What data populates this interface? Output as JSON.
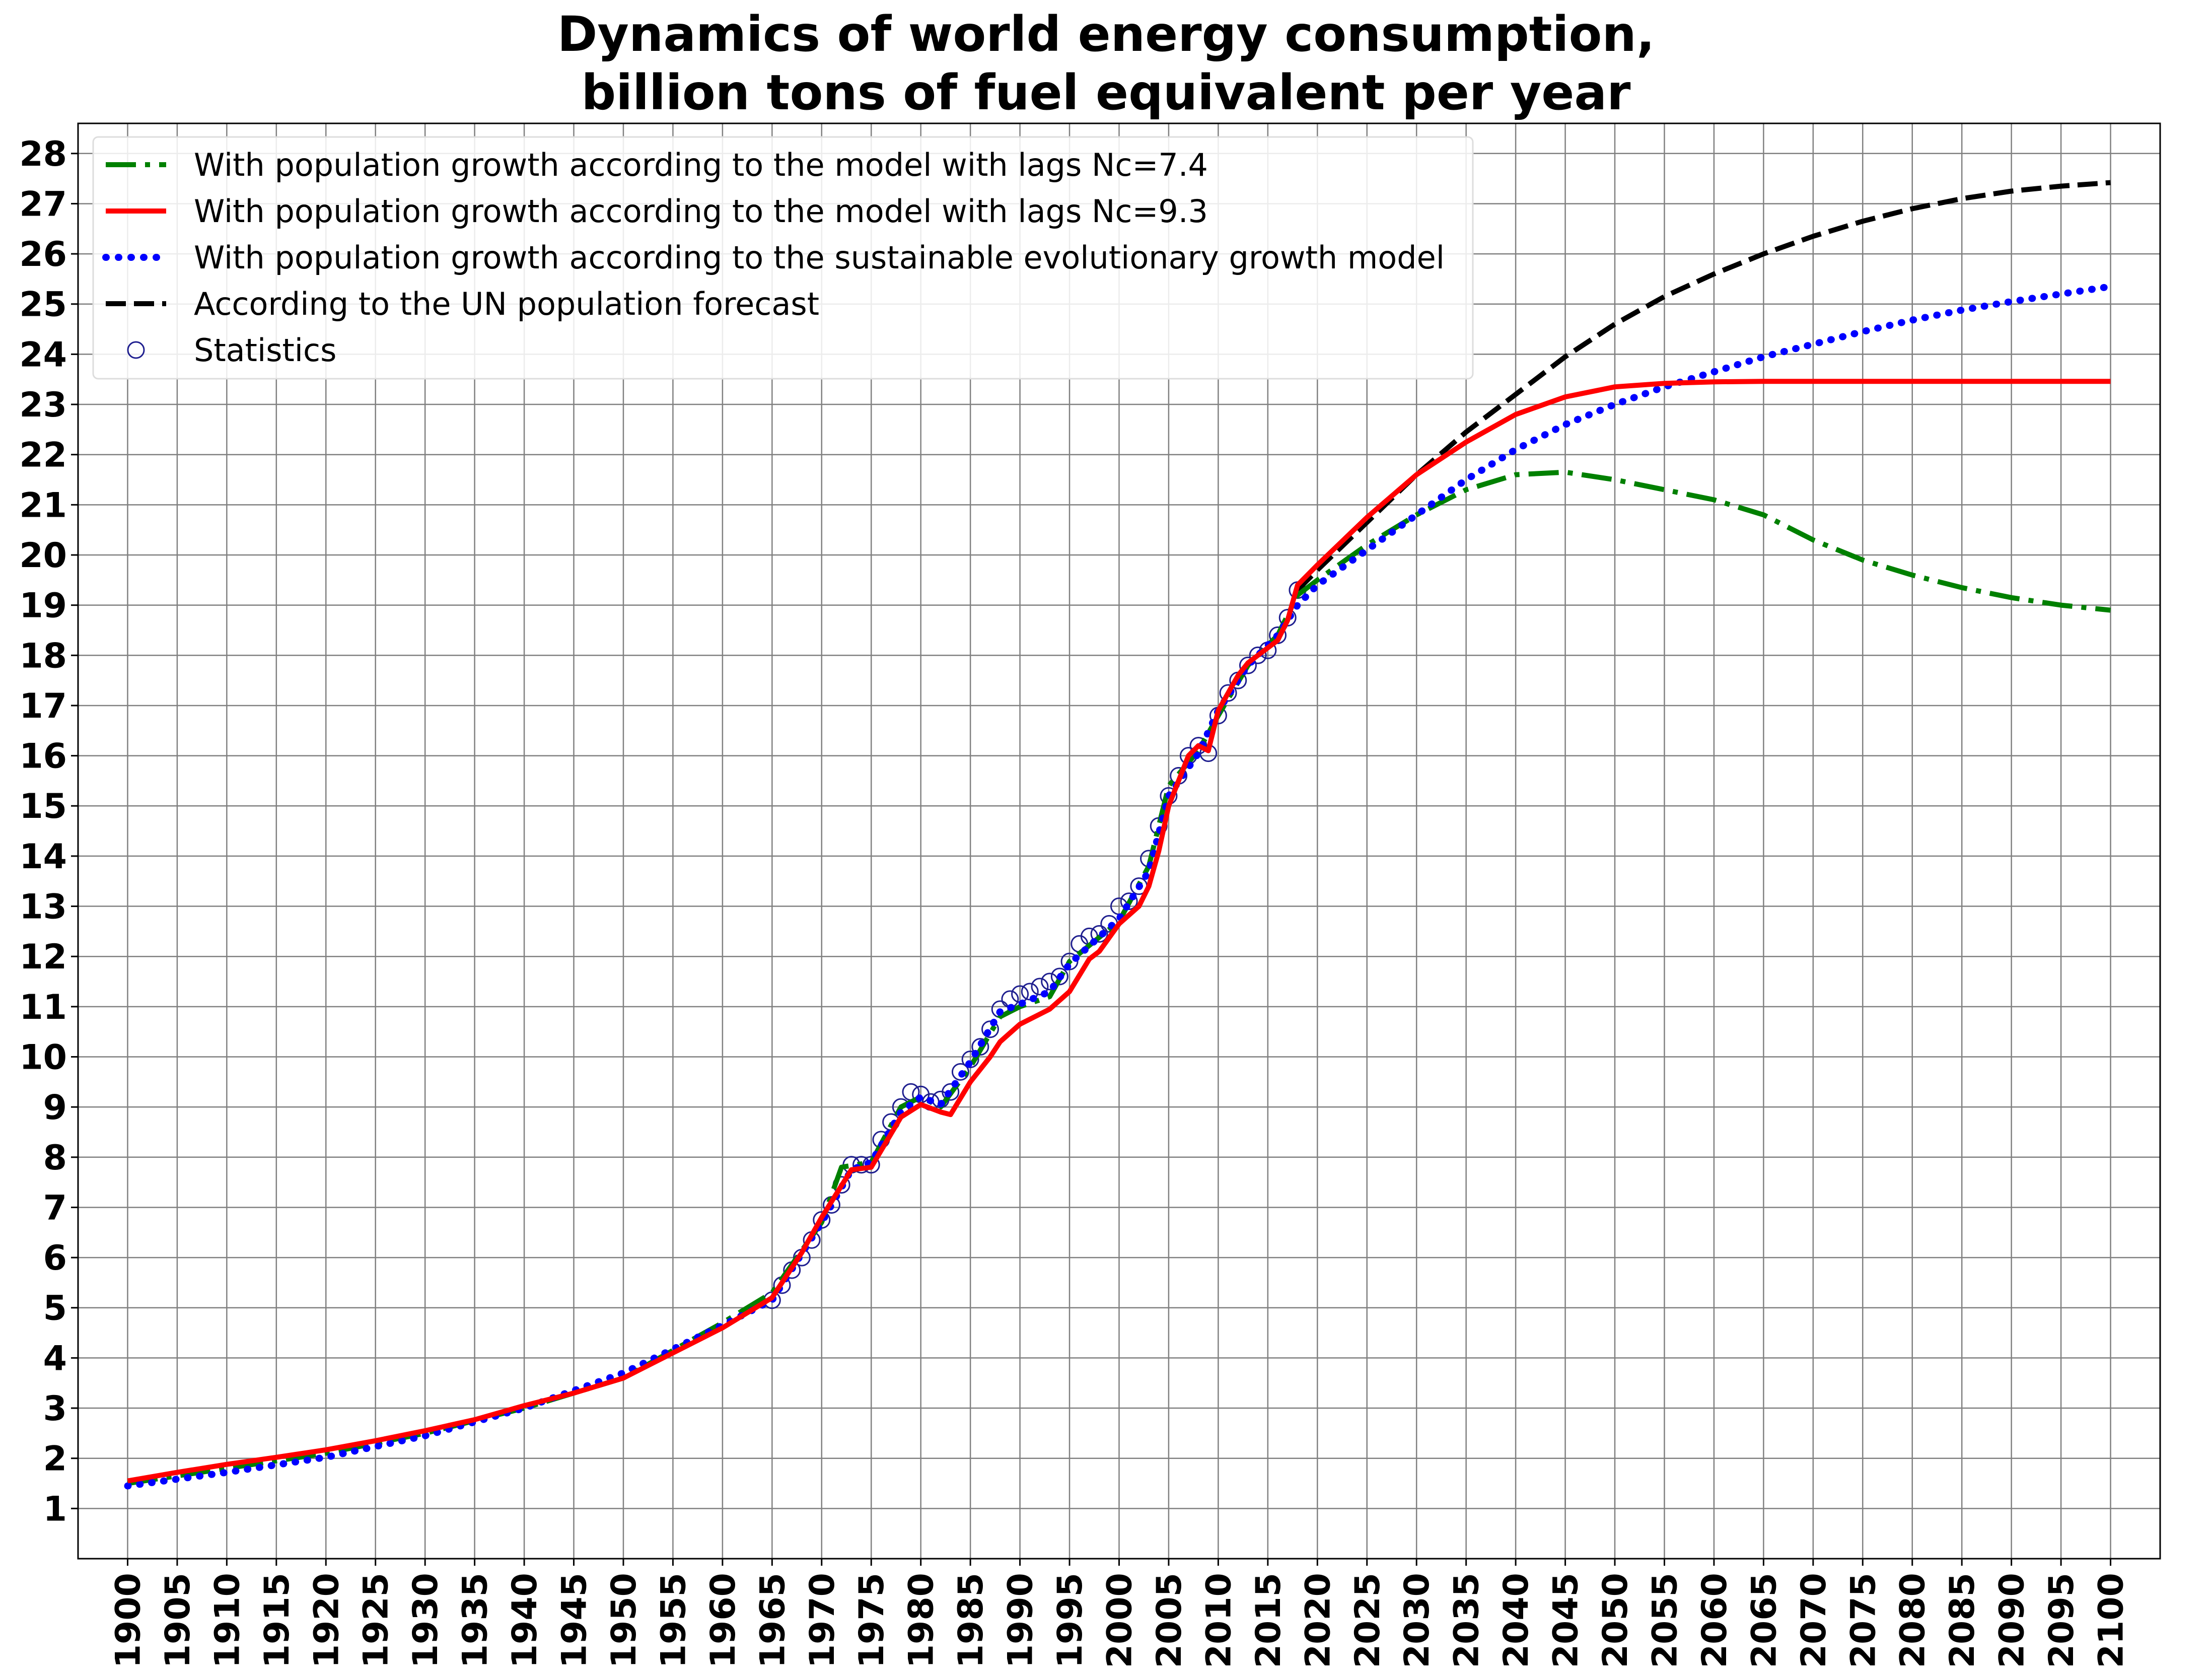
{
  "chart_data": {
    "type": "line",
    "title": "Dynamics of world energy consumption,",
    "subtitle": "billion tons of fuel equivalent per year",
    "xlabel": "",
    "ylabel": "",
    "xlim": [
      1895,
      2105
    ],
    "ylim": [
      0,
      28.6
    ],
    "x_ticks": [
      1900,
      1905,
      1910,
      1915,
      1920,
      1925,
      1930,
      1935,
      1940,
      1945,
      1950,
      1955,
      1960,
      1965,
      1970,
      1975,
      1980,
      1985,
      1990,
      1995,
      2000,
      2005,
      2010,
      2015,
      2020,
      2025,
      2030,
      2035,
      2040,
      2045,
      2050,
      2055,
      2060,
      2065,
      2070,
      2075,
      2080,
      2085,
      2090,
      2095,
      2100
    ],
    "y_ticks": [
      1,
      2,
      3,
      4,
      5,
      6,
      7,
      8,
      9,
      10,
      11,
      12,
      13,
      14,
      15,
      16,
      17,
      18,
      19,
      20,
      21,
      22,
      23,
      24,
      25,
      26,
      27,
      28
    ],
    "grid": true,
    "legend_position": "top-left",
    "series": [
      {
        "name": "With population growth according to the model with lags Nc=7.4",
        "color": "#008000",
        "style": "dashdot",
        "x": [
          1900,
          1910,
          1920,
          1930,
          1940,
          1950,
          1960,
          1965,
          1970,
          1972,
          1975,
          1978,
          1980,
          1982,
          1985,
          1988,
          1990,
          1993,
          1995,
          2000,
          2003,
          2005,
          2008,
          2010,
          2013,
          2016,
          2018,
          2020,
          2025,
          2030,
          2035,
          2040,
          2045,
          2050,
          2055,
          2060,
          2065,
          2070,
          2075,
          2080,
          2085,
          2090,
          2095,
          2100
        ],
        "values": [
          1.5,
          1.8,
          2.1,
          2.5,
          3.0,
          3.6,
          4.7,
          5.3,
          6.7,
          7.8,
          7.9,
          9.0,
          9.2,
          9.0,
          9.8,
          10.8,
          11.0,
          11.2,
          11.9,
          12.7,
          13.8,
          15.4,
          16.1,
          16.8,
          17.8,
          18.4,
          19.2,
          19.5,
          20.2,
          20.8,
          21.3,
          21.6,
          21.65,
          21.5,
          21.3,
          21.1,
          20.8,
          20.3,
          19.9,
          19.6,
          19.35,
          19.15,
          19.0,
          18.9
        ]
      },
      {
        "name": "With population growth according to the model with lags  Nc=9.3",
        "color": "#ff0000",
        "style": "solid",
        "x": [
          1900,
          1905,
          1910,
          1915,
          1920,
          1925,
          1930,
          1935,
          1940,
          1945,
          1950,
          1955,
          1960,
          1965,
          1968,
          1970,
          1973,
          1975,
          1978,
          1980,
          1982,
          1983,
          1985,
          1987,
          1988,
          1990,
          1992,
          1993,
          1995,
          1997,
          1998,
          2000,
          2002,
          2003,
          2004,
          2005,
          2007,
          2008,
          2009,
          2010,
          2012,
          2013,
          2015,
          2016,
          2017,
          2018,
          2020,
          2025,
          2030,
          2035,
          2040,
          2045,
          2050,
          2055,
          2060,
          2065,
          2070,
          2080,
          2090,
          2100
        ],
        "values": [
          1.55,
          1.72,
          1.88,
          2.02,
          2.17,
          2.35,
          2.55,
          2.77,
          3.05,
          3.3,
          3.6,
          4.1,
          4.6,
          5.2,
          6.1,
          6.8,
          7.75,
          7.8,
          8.8,
          9.05,
          8.9,
          8.85,
          9.5,
          10.0,
          10.3,
          10.65,
          10.85,
          10.95,
          11.3,
          11.95,
          12.1,
          12.65,
          13.0,
          13.4,
          14.1,
          15.0,
          16.0,
          16.2,
          16.1,
          16.9,
          17.6,
          17.85,
          18.15,
          18.3,
          18.7,
          19.4,
          19.8,
          20.75,
          21.6,
          22.25,
          22.8,
          23.15,
          23.35,
          23.42,
          23.45,
          23.46,
          23.46,
          23.46,
          23.46,
          23.46
        ]
      },
      {
        "name": "With population growth according to the sustainable evolutionary growth model",
        "color": "#0000ff",
        "style": "dotted",
        "x": [
          1900,
          1910,
          1920,
          1930,
          1940,
          1950,
          1960,
          1965,
          1970,
          1973,
          1975,
          1978,
          1980,
          1982,
          1985,
          1988,
          1990,
          1993,
          1995,
          2000,
          2003,
          2005,
          2008,
          2010,
          2013,
          2016,
          2018,
          2020,
          2025,
          2030,
          2035,
          2040,
          2045,
          2050,
          2055,
          2060,
          2065,
          2070,
          2075,
          2080,
          2085,
          2090,
          2095,
          2100
        ],
        "values": [
          1.45,
          1.72,
          2.02,
          2.45,
          3.0,
          3.7,
          4.65,
          5.15,
          6.7,
          7.75,
          7.9,
          8.9,
          9.2,
          9.05,
          9.9,
          10.9,
          11.05,
          11.3,
          11.85,
          12.75,
          13.7,
          15.2,
          16.05,
          16.9,
          17.8,
          18.4,
          19.0,
          19.4,
          20.1,
          20.8,
          21.5,
          22.1,
          22.6,
          23.0,
          23.35,
          23.65,
          23.95,
          24.2,
          24.45,
          24.68,
          24.88,
          25.05,
          25.2,
          25.35
        ]
      },
      {
        "name": "According to the UN population forecast",
        "color": "#000000",
        "style": "dashed",
        "x": [
          2018,
          2020,
          2025,
          2030,
          2035,
          2040,
          2045,
          2050,
          2055,
          2060,
          2065,
          2070,
          2075,
          2080,
          2085,
          2090,
          2095,
          2100
        ],
        "values": [
          19.3,
          19.7,
          20.65,
          21.6,
          22.45,
          23.2,
          23.95,
          24.6,
          25.15,
          25.6,
          26.0,
          26.35,
          26.65,
          26.9,
          27.1,
          27.25,
          27.35,
          27.42
        ]
      },
      {
        "name": "Statistics",
        "color": "#1f1f8f",
        "style": "markers",
        "x": [
          1965,
          1966,
          1967,
          1968,
          1969,
          1970,
          1971,
          1972,
          1973,
          1974,
          1975,
          1976,
          1977,
          1978,
          1979,
          1980,
          1981,
          1982,
          1983,
          1984,
          1985,
          1986,
          1987,
          1988,
          1989,
          1990,
          1991,
          1992,
          1993,
          1994,
          1995,
          1996,
          1997,
          1998,
          1999,
          2000,
          2001,
          2002,
          2003,
          2004,
          2005,
          2006,
          2007,
          2008,
          2009,
          2010,
          2011,
          2012,
          2013,
          2014,
          2015,
          2016,
          2017,
          2018
        ],
        "values": [
          5.15,
          5.45,
          5.75,
          6.0,
          6.35,
          6.75,
          7.05,
          7.45,
          7.85,
          7.85,
          7.85,
          8.35,
          8.7,
          9.0,
          9.3,
          9.25,
          9.1,
          9.15,
          9.3,
          9.7,
          9.95,
          10.2,
          10.55,
          10.95,
          11.15,
          11.25,
          11.3,
          11.4,
          11.5,
          11.6,
          11.9,
          12.25,
          12.4,
          12.45,
          12.65,
          13.0,
          13.1,
          13.4,
          13.95,
          14.6,
          15.2,
          15.6,
          16.0,
          16.2,
          16.05,
          16.8,
          17.25,
          17.5,
          17.8,
          18.0,
          18.1,
          18.4,
          18.75,
          19.3
        ]
      }
    ]
  }
}
